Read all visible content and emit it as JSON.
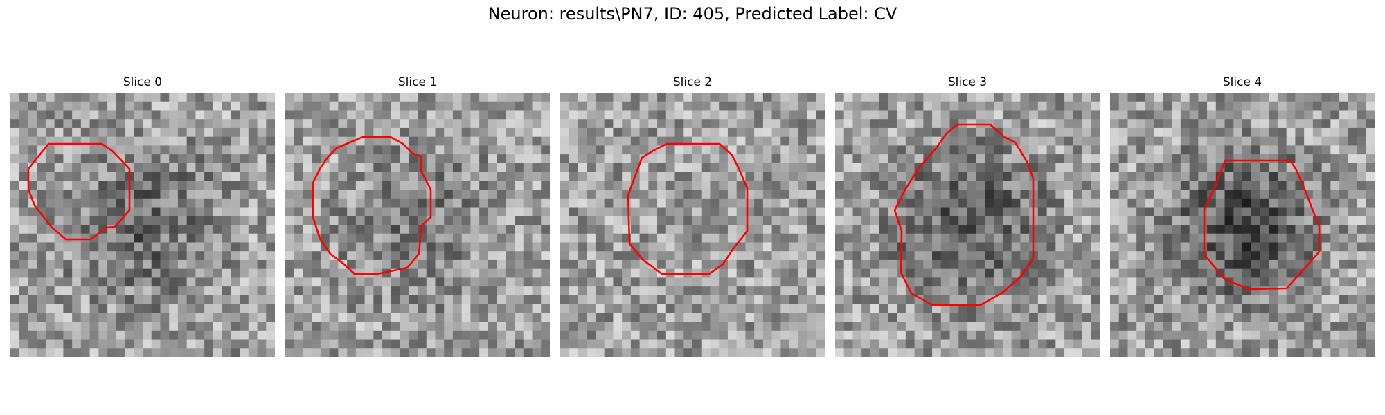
{
  "figure": {
    "suptitle": "Neuron: results\\PN7, ID: 405, Predicted Label: CV"
  },
  "panels": [
    {
      "title": "Slice 0",
      "center_shade": 100,
      "contour_color": "#ff0000"
    },
    {
      "title": "Slice 1",
      "center_shade": 120,
      "contour_color": "#ff0000"
    },
    {
      "title": "Slice 2",
      "center_shade": 160,
      "contour_color": "#ff0000"
    },
    {
      "title": "Slice 3",
      "center_shade": 80,
      "contour_color": "#ff0000"
    },
    {
      "title": "Slice 4",
      "center_shade": 70,
      "contour_color": "#ff0000"
    }
  ]
}
